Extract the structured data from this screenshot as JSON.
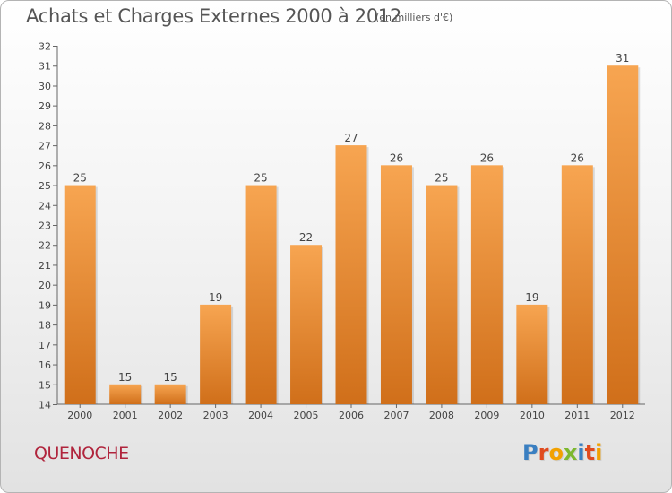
{
  "header": {
    "title": "Achats et Charges Externes 2000 à 2012",
    "subtitle": "(en milliers d'€)"
  },
  "footer": {
    "commune": "QUENOCHE",
    "logo": [
      "P",
      "r",
      "o",
      "x",
      "i",
      "t",
      "i"
    ],
    "logo_colors": [
      "#3a7fc1",
      "#e04a1e",
      "#f2a100",
      "#7cb82f",
      "#3a7fc1",
      "#e04a1e",
      "#f2a100"
    ]
  },
  "colors": {
    "bar_top": "#f7a551",
    "bar_bottom": "#d06f1a",
    "accent": "#b0243c"
  },
  "chart_data": {
    "type": "bar",
    "title": "Achats et Charges Externes 2000 à 2012",
    "subtitle": "(en milliers d'€)",
    "categories": [
      "2000",
      "2001",
      "2002",
      "2003",
      "2004",
      "2005",
      "2006",
      "2007",
      "2008",
      "2009",
      "2010",
      "2011",
      "2012"
    ],
    "values": [
      25,
      15,
      15,
      19,
      25,
      22,
      27,
      26,
      25,
      26,
      19,
      26,
      31
    ],
    "ylim": [
      14,
      32
    ],
    "yticks": [
      14,
      15,
      16,
      17,
      18,
      19,
      20,
      21,
      22,
      23,
      24,
      25,
      26,
      27,
      28,
      29,
      30,
      31,
      32
    ],
    "xlabel": "",
    "ylabel": "",
    "grid": false,
    "legend": "none"
  }
}
